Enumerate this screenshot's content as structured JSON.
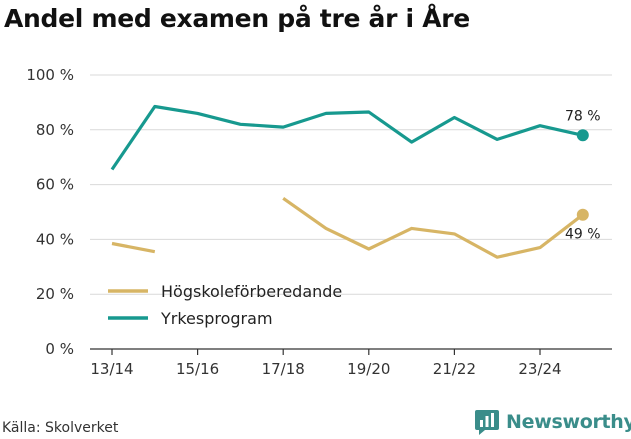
{
  "header": {
    "title": "Andel med examen på tre år i Åre"
  },
  "footer": {
    "source": "Källa: Skolverket",
    "brand": "Newsworthy"
  },
  "colors": {
    "yrkes": "#17998f",
    "hogskole": "#d7b565",
    "axis": "#333333",
    "grid": "#d9d9d9",
    "brand": "#3a8d8a"
  },
  "chart_data": {
    "type": "line",
    "title": "Andel med examen på tre år i Åre",
    "xlabel": "",
    "ylabel": "",
    "x": [
      "13/14",
      "14/15",
      "15/16",
      "16/17",
      "17/18",
      "18/19",
      "19/20",
      "20/21",
      "21/22",
      "22/23",
      "23/24",
      "24/25"
    ],
    "x_tick_labels": [
      "13/14",
      "15/16",
      "17/18",
      "19/20",
      "21/22",
      "23/24"
    ],
    "ylim": [
      0,
      100
    ],
    "y_ticks": [
      0,
      20,
      40,
      60,
      80,
      100
    ],
    "y_tick_labels": [
      "0 %",
      "20 %",
      "40 %",
      "60 %",
      "80 %",
      "100 %"
    ],
    "grid": true,
    "legend_position": "bottom-left",
    "series": [
      {
        "name": "Högskoleförberedande",
        "color": "#d7b565",
        "values": [
          38.5,
          35.5,
          null,
          null,
          55,
          44,
          36.5,
          44,
          42,
          33.5,
          37,
          49
        ],
        "end_label": "49 %"
      },
      {
        "name": "Yrkesprogram",
        "color": "#17998f",
        "values": [
          65.5,
          88.5,
          86,
          82,
          81,
          86,
          86.5,
          75.5,
          84.5,
          76.5,
          81.5,
          78
        ],
        "end_label": "78 %"
      }
    ]
  }
}
